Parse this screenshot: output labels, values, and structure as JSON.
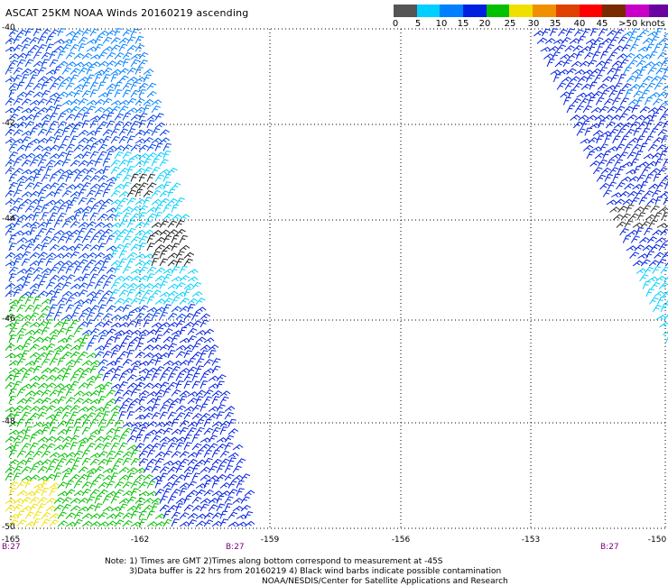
{
  "title": "ASCAT 25KM NOAA Winds 20160219 ascending",
  "legend": {
    "labels": [
      "0",
      "5",
      "10",
      "15",
      "20",
      "25",
      "30",
      "35",
      "40",
      "45",
      ">50 knots"
    ],
    "colors": [
      "#555555",
      "#00d0ff",
      "#0080ff",
      "#0020e0",
      "#00c000",
      "#f0e000",
      "#f09000",
      "#e04000",
      "#ff0000",
      "#7a2a00",
      "#c800c8",
      "#6a00a0"
    ]
  },
  "axes": {
    "latitude_labels": [
      "-40",
      "-42",
      "-44",
      "-46",
      "-48",
      "-50"
    ],
    "longitude_labels": [
      "-165",
      "-162",
      "-159",
      "-156",
      "-153",
      "-150"
    ],
    "time_labels": [
      "B:27",
      "B:27",
      "B:27"
    ]
  },
  "notes": {
    "line1": "Note: 1) Times are GMT 2)Times along bottom correspond to measurement at -45S",
    "line2": "3)Data buffer is 22 hrs from 20160219 4) Black wind barbs indicate possible contamination",
    "line3": "NOAA/NESDIS/Center for Satellite Applications and Research"
  },
  "swaths": [
    {
      "name": "left-swath",
      "color_regions": [
        "blue",
        "cyan",
        "black",
        "green",
        "yellow"
      ]
    },
    {
      "name": "right-swath",
      "color_regions": [
        "blue",
        "cyan"
      ]
    }
  ],
  "grid": true
}
